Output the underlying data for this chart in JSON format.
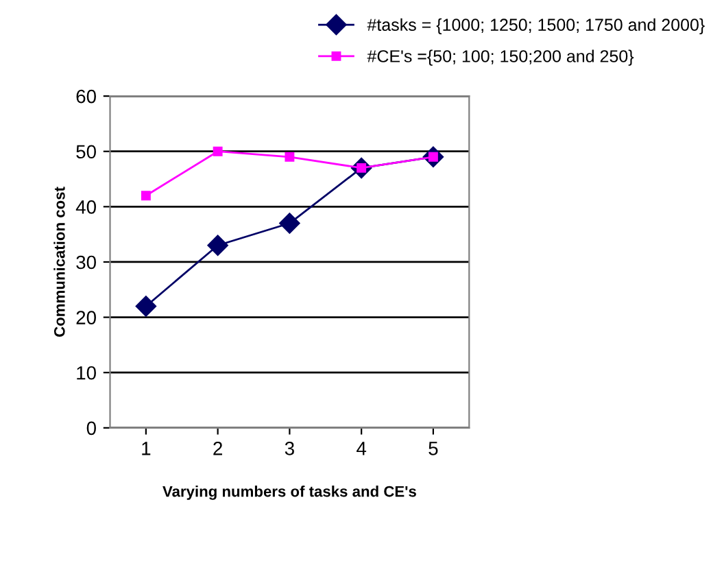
{
  "chart_data": {
    "type": "line",
    "xlabel": "Varying numbers of tasks and CE's",
    "ylabel": "Communication cost",
    "categories": [
      "1",
      "2",
      "3",
      "4",
      "5"
    ],
    "series": [
      {
        "name": "#tasks = {1000; 1250; 1500; 1750 and 2000}",
        "color": "#000066",
        "marker": "diamond",
        "values": [
          22,
          33,
          37,
          47,
          49
        ]
      },
      {
        "name": "#CE's ={50; 100; 150;200 and 250}",
        "color": "#ff00ff",
        "marker": "square",
        "values": [
          42,
          50,
          49,
          47,
          49
        ]
      }
    ],
    "ylim": [
      0,
      60
    ],
    "yticks": [
      0,
      10,
      20,
      30,
      40,
      50,
      60
    ],
    "grid": "y",
    "legend": "top right",
    "line_style": "solid"
  }
}
